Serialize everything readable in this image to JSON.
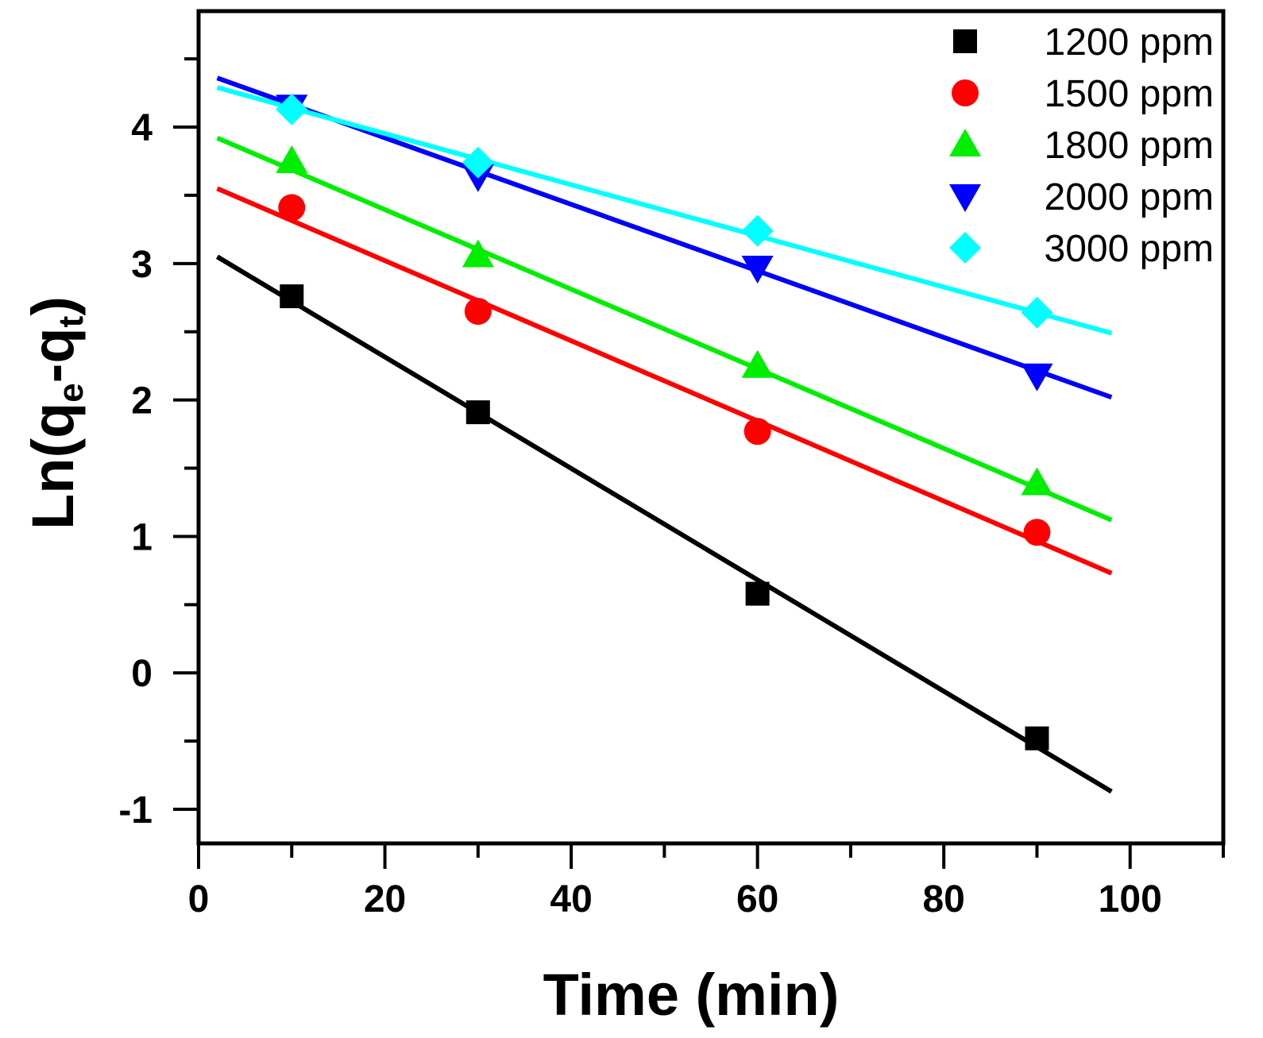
{
  "chart_data": {
    "type": "scatter",
    "title": "",
    "xlabel": "Time (min)",
    "ylabel_parts": {
      "prefix": "Ln(q",
      "sub1": "e",
      "mid": "-q",
      "sub2": "t",
      "suffix": ")"
    },
    "xlim": [
      0,
      110
    ],
    "ylim": [
      -1.25,
      4.85
    ],
    "x_ticks": [
      0,
      20,
      40,
      60,
      80,
      100
    ],
    "x_tick_labels": [
      "0",
      "20",
      "40",
      "60",
      "80",
      "100"
    ],
    "y_ticks": [
      -1,
      0,
      1,
      2,
      3,
      4
    ],
    "y_tick_labels": [
      "-1",
      "0",
      "1",
      "2",
      "3",
      "4"
    ],
    "legend_position": "top-right",
    "series": [
      {
        "name": "1200 ppm",
        "marker": "square",
        "color": "#000000",
        "x": [
          10,
          30,
          60,
          90
        ],
        "y": [
          2.76,
          1.91,
          0.58,
          -0.48
        ],
        "fit": {
          "x": [
            2,
            98
          ],
          "y": [
            3.05,
            -0.87
          ]
        }
      },
      {
        "name": "1500 ppm",
        "marker": "circle",
        "color": "#ff0000",
        "x": [
          10,
          30,
          60,
          90
        ],
        "y": [
          3.41,
          2.65,
          1.77,
          1.03
        ],
        "fit": {
          "x": [
            2,
            98
          ],
          "y": [
            3.55,
            0.73
          ]
        }
      },
      {
        "name": "1800 ppm",
        "marker": "triangle-up",
        "color": "#00ee00",
        "x": [
          10,
          30,
          60,
          90
        ],
        "y": [
          3.75,
          3.06,
          2.25,
          1.39
        ],
        "fit": {
          "x": [
            2,
            98
          ],
          "y": [
            3.92,
            1.12
          ]
        }
      },
      {
        "name": "2000 ppm",
        "marker": "triangle-down",
        "color": "#0000ff",
        "x": [
          10,
          30,
          60,
          90
        ],
        "y": [
          4.15,
          3.64,
          2.97,
          2.18
        ],
        "fit": {
          "x": [
            2,
            98
          ],
          "y": [
            4.36,
            2.02
          ]
        }
      },
      {
        "name": "3000 ppm",
        "marker": "diamond",
        "color": "#00ffff",
        "x": [
          10,
          30,
          60,
          90
        ],
        "y": [
          4.13,
          3.74,
          3.24,
          2.64
        ],
        "fit": {
          "x": [
            2,
            98
          ],
          "y": [
            4.29,
            2.49
          ]
        }
      }
    ]
  }
}
